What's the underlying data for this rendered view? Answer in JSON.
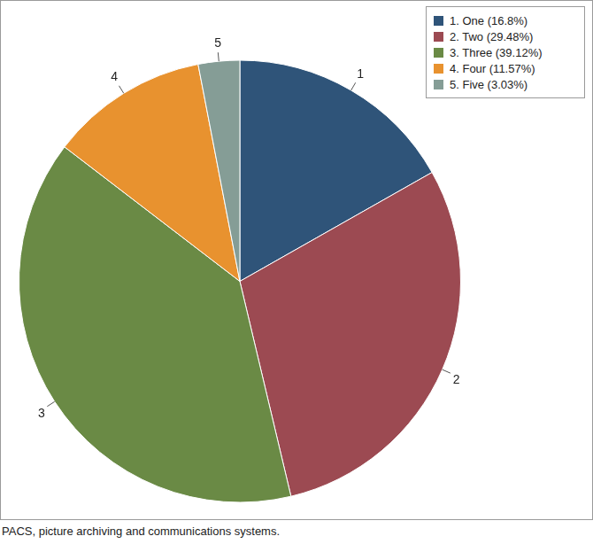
{
  "chart_data": {
    "type": "pie",
    "categories": [
      "1. One (16.8%)",
      "2. Two (29.48%)",
      "3. Three (39.12%)",
      "4. Four (11.57%)",
      "5. Five (3.03%)"
    ],
    "values": [
      16.8,
      29.48,
      39.12,
      11.57,
      3.03
    ],
    "colors": [
      "#2f5479",
      "#9c4a52",
      "#6a8a45",
      "#e8922f",
      "#859d96"
    ],
    "slice_labels": [
      "1",
      "2",
      "3",
      "4",
      "5"
    ],
    "legend": "top-right",
    "footnote": "PACS, picture archiving and communications systems."
  }
}
